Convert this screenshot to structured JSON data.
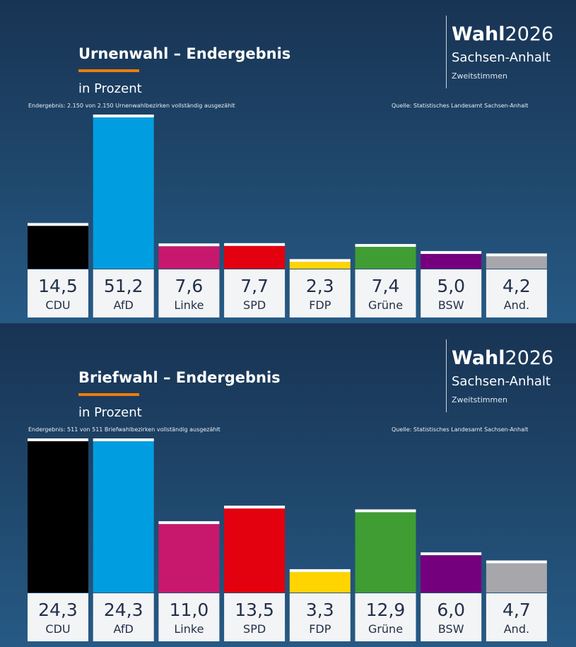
{
  "brand": {
    "title_bold": "Wahl",
    "title_year": "2026",
    "region": "Sachsen-Anhalt",
    "votes": "Zweitstimmen"
  },
  "panels": [
    {
      "title": "Urnenwahl – Endergebnis",
      "subtitle": "in Prozent",
      "note_left": "Endergebnis: 2.150 von 2.150 Urnenwahlbezirken vollständig ausgezählt",
      "note_right": "Quelle: Statistisches Landesamt Sachsen-Anhalt"
    },
    {
      "title": "Briefwahl – Endergebnis",
      "subtitle": "in Prozent",
      "note_left": "Endergebnis: 511 von 511 Briefwahlbezirken vollständig ausgezählt",
      "note_right": "Quelle: Statistisches Landesamt Sachsen-Anhalt"
    }
  ],
  "chart_data": [
    {
      "type": "bar",
      "title": "Urnenwahl – Endergebnis",
      "ylabel": "in Prozent",
      "categories": [
        "CDU",
        "AfD",
        "Linke",
        "SPD",
        "FDP",
        "Grüne",
        "BSW",
        "And."
      ],
      "values": [
        14.5,
        51.2,
        7.6,
        7.7,
        2.3,
        7.4,
        5.0,
        4.2
      ],
      "value_labels": [
        "14,5",
        "51,2",
        "7,6",
        "7,7",
        "2,3",
        "7,4",
        "5,0",
        "4,2"
      ],
      "colors": [
        "#000000",
        "#009ee0",
        "#c8186e",
        "#e3000f",
        "#ffd400",
        "#3f9d33",
        "#75007e",
        "#a7a6ab"
      ],
      "grid": false,
      "legend": "none"
    },
    {
      "type": "bar",
      "title": "Briefwahl – Endergebnis",
      "ylabel": "in Prozent",
      "categories": [
        "CDU",
        "AfD",
        "Linke",
        "SPD",
        "FDP",
        "Grüne",
        "BSW",
        "And."
      ],
      "values": [
        24.3,
        24.3,
        11.0,
        13.5,
        3.3,
        12.9,
        6.0,
        4.7
      ],
      "value_labels": [
        "24,3",
        "24,3",
        "11,0",
        "13,5",
        "3,3",
        "12,9",
        "6,0",
        "4,7"
      ],
      "colors": [
        "#000000",
        "#009ee0",
        "#c8186e",
        "#e3000f",
        "#ffd400",
        "#3f9d33",
        "#75007e",
        "#a7a6ab"
      ],
      "grid": false,
      "legend": "none"
    }
  ]
}
